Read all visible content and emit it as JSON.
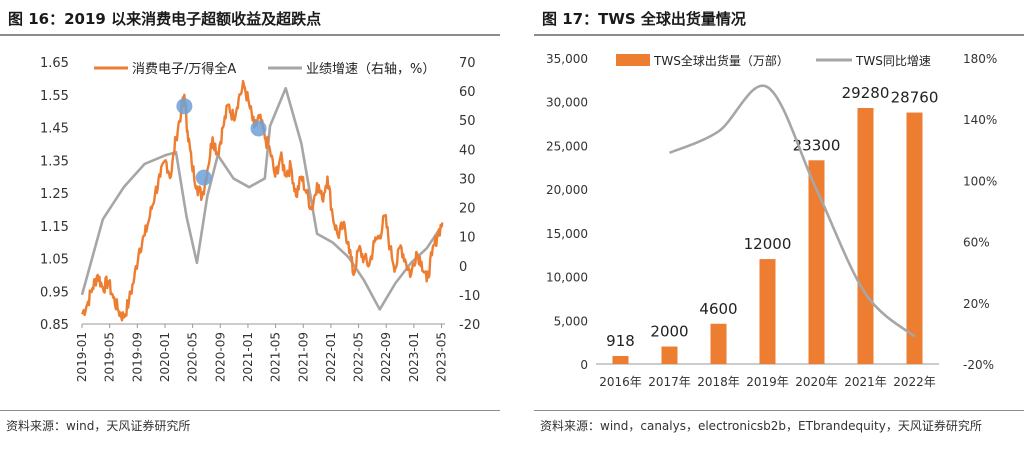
{
  "figure16": {
    "title": "图 16：2019 以来消费电子超额收益及超跌点",
    "source": "资料来源：wind，天风证券研究所",
    "colors": {
      "index": "#ed7d31",
      "growth": "#a6a6a6",
      "marker": "#6fa1d6"
    },
    "chart_data": {
      "type": "line",
      "x_ticks": [
        "2019-01",
        "2019-05",
        "2019-09",
        "2020-01",
        "2020-05",
        "2020-09",
        "2021-01",
        "2021-05",
        "2021-09",
        "2022-01",
        "2022-05",
        "2022-09",
        "2023-01",
        "2023-05"
      ],
      "y_left": {
        "ticks": [
          "1.65",
          "1.55",
          "1.45",
          "1.35",
          "1.25",
          "1.15",
          "1.05",
          "0.95",
          "0.85"
        ],
        "range": [
          0.85,
          1.65
        ]
      },
      "y_right": {
        "ticks": [
          "70",
          "60",
          "50",
          "40",
          "30",
          "20",
          "10",
          "0",
          "-10",
          "-20"
        ],
        "range": [
          -20,
          70
        ]
      },
      "legend": {
        "position": "top",
        "labels": [
          "消费电子/万得全A",
          "业绩增速（右轴，%）"
        ]
      },
      "series": [
        {
          "name": "消费电子/万得全A",
          "axis": "left",
          "anchors": [
            [
              0,
              0.88
            ],
            [
              1,
              0.91
            ],
            [
              2,
              0.96
            ],
            [
              3,
              1.0
            ],
            [
              4,
              0.96
            ],
            [
              5,
              0.98
            ],
            [
              6,
              0.93
            ],
            [
              7,
              0.89
            ],
            [
              8,
              0.87
            ],
            [
              9,
              0.92
            ],
            [
              10,
              0.99
            ],
            [
              11,
              1.08
            ],
            [
              12,
              1.12
            ],
            [
              13,
              1.18
            ],
            [
              14,
              1.25
            ],
            [
              15,
              1.3
            ],
            [
              16,
              1.35
            ],
            [
              17,
              1.3
            ],
            [
              18,
              1.42
            ],
            [
              19,
              1.5
            ],
            [
              19.6,
              1.55
            ],
            [
              20.2,
              1.44
            ],
            [
              21,
              1.34
            ],
            [
              22,
              1.27
            ],
            [
              23,
              1.24
            ],
            [
              24,
              1.32
            ],
            [
              25,
              1.42
            ],
            [
              26,
              1.37
            ],
            [
              27,
              1.45
            ],
            [
              28,
              1.52
            ],
            [
              29,
              1.48
            ],
            [
              30,
              1.54
            ],
            [
              31,
              1.58
            ],
            [
              32,
              1.52
            ],
            [
              33,
              1.45
            ],
            [
              34,
              1.48
            ],
            [
              35,
              1.42
            ],
            [
              36,
              1.38
            ],
            [
              37,
              1.3
            ],
            [
              38,
              1.36
            ],
            [
              39,
              1.31
            ],
            [
              40,
              1.33
            ],
            [
              41,
              1.24
            ],
            [
              42,
              1.3
            ],
            [
              43,
              1.25
            ],
            [
              44,
              1.2
            ],
            [
              45,
              1.28
            ],
            [
              46,
              1.23
            ],
            [
              47,
              1.3
            ],
            [
              48,
              1.18
            ],
            [
              49,
              1.12
            ],
            [
              50,
              1.15
            ],
            [
              51,
              1.1
            ],
            [
              52,
              1.0
            ],
            [
              53,
              1.08
            ],
            [
              54,
              1.05
            ],
            [
              55,
              1.03
            ],
            [
              56,
              1.1
            ],
            [
              57,
              1.12
            ],
            [
              58,
              1.18
            ],
            [
              59,
              1.08
            ],
            [
              60,
              1.02
            ],
            [
              61,
              1.09
            ],
            [
              62,
              1.04
            ],
            [
              63,
              1.0
            ],
            [
              64,
              1.07
            ],
            [
              65,
              1.04
            ],
            [
              66,
              0.98
            ],
            [
              67,
              1.06
            ],
            [
              68,
              1.12
            ],
            [
              69,
              1.16
            ]
          ],
          "markers": [
            [
              19.6,
              1.515
            ],
            [
              23.3,
              1.297
            ],
            [
              33.8,
              1.447
            ]
          ]
        },
        {
          "name": "业绩增速（右轴，%）",
          "axis": "right",
          "points": [
            [
              0,
              -10
            ],
            [
              4,
              16
            ],
            [
              8,
              27
            ],
            [
              12,
              35
            ],
            [
              16,
              38
            ],
            [
              18,
              39
            ],
            [
              20,
              17
            ],
            [
              22,
              1
            ],
            [
              24,
              24
            ],
            [
              26,
              38
            ],
            [
              29,
              30
            ],
            [
              32,
              27
            ],
            [
              35,
              30
            ],
            [
              36,
              48
            ],
            [
              39,
              61
            ],
            [
              42,
              42
            ],
            [
              45,
              11
            ],
            [
              48,
              8
            ],
            [
              51,
              3
            ],
            [
              54,
              -5
            ],
            [
              57,
              -15
            ],
            [
              60,
              -6
            ],
            [
              63,
              1
            ],
            [
              66,
              6
            ],
            [
              69,
              14
            ]
          ]
        }
      ]
    }
  },
  "figure17": {
    "title": "图 17：TWS 全球出货量情况",
    "source": "资料来源：wind，canalys，electronicsb2b，ETbrandequity，天风证券研究所",
    "colors": {
      "bar": "#ed7d31",
      "line": "#a6a6a6"
    },
    "chart_data": {
      "type": "bar",
      "categories": [
        "2016年",
        "2017年",
        "2018年",
        "2019年",
        "2020年",
        "2021年",
        "2022年"
      ],
      "y_left": {
        "ticks": [
          "35,000",
          "30,000",
          "25,000",
          "20,000",
          "15,000",
          "10,000",
          "5,000",
          "0"
        ],
        "range": [
          0,
          35000
        ]
      },
      "y_right": {
        "ticks": [
          "180%",
          "140%",
          "100%",
          "60%",
          "20%",
          "-20%"
        ],
        "range": [
          -20,
          180
        ]
      },
      "legend": {
        "position": "top",
        "labels": [
          "TWS全球出货量（万部）",
          "TWS同比增速"
        ]
      },
      "series": [
        {
          "name": "TWS全球出货量（万部）",
          "type": "bar",
          "values": [
            918,
            2000,
            4600,
            12000,
            23300,
            29280,
            28760
          ],
          "labels": [
            "918",
            "2000",
            "4600",
            "12000",
            "23300",
            "29280",
            "28760"
          ]
        },
        {
          "name": "TWS同比增速",
          "type": "line",
          "axis": "right",
          "points": [
            [
              1,
              118
            ],
            [
              2,
              132
            ],
            [
              3,
              161
            ],
            [
              4,
              94
            ],
            [
              5,
              26
            ],
            [
              6,
              -2
            ]
          ]
        }
      ]
    }
  }
}
